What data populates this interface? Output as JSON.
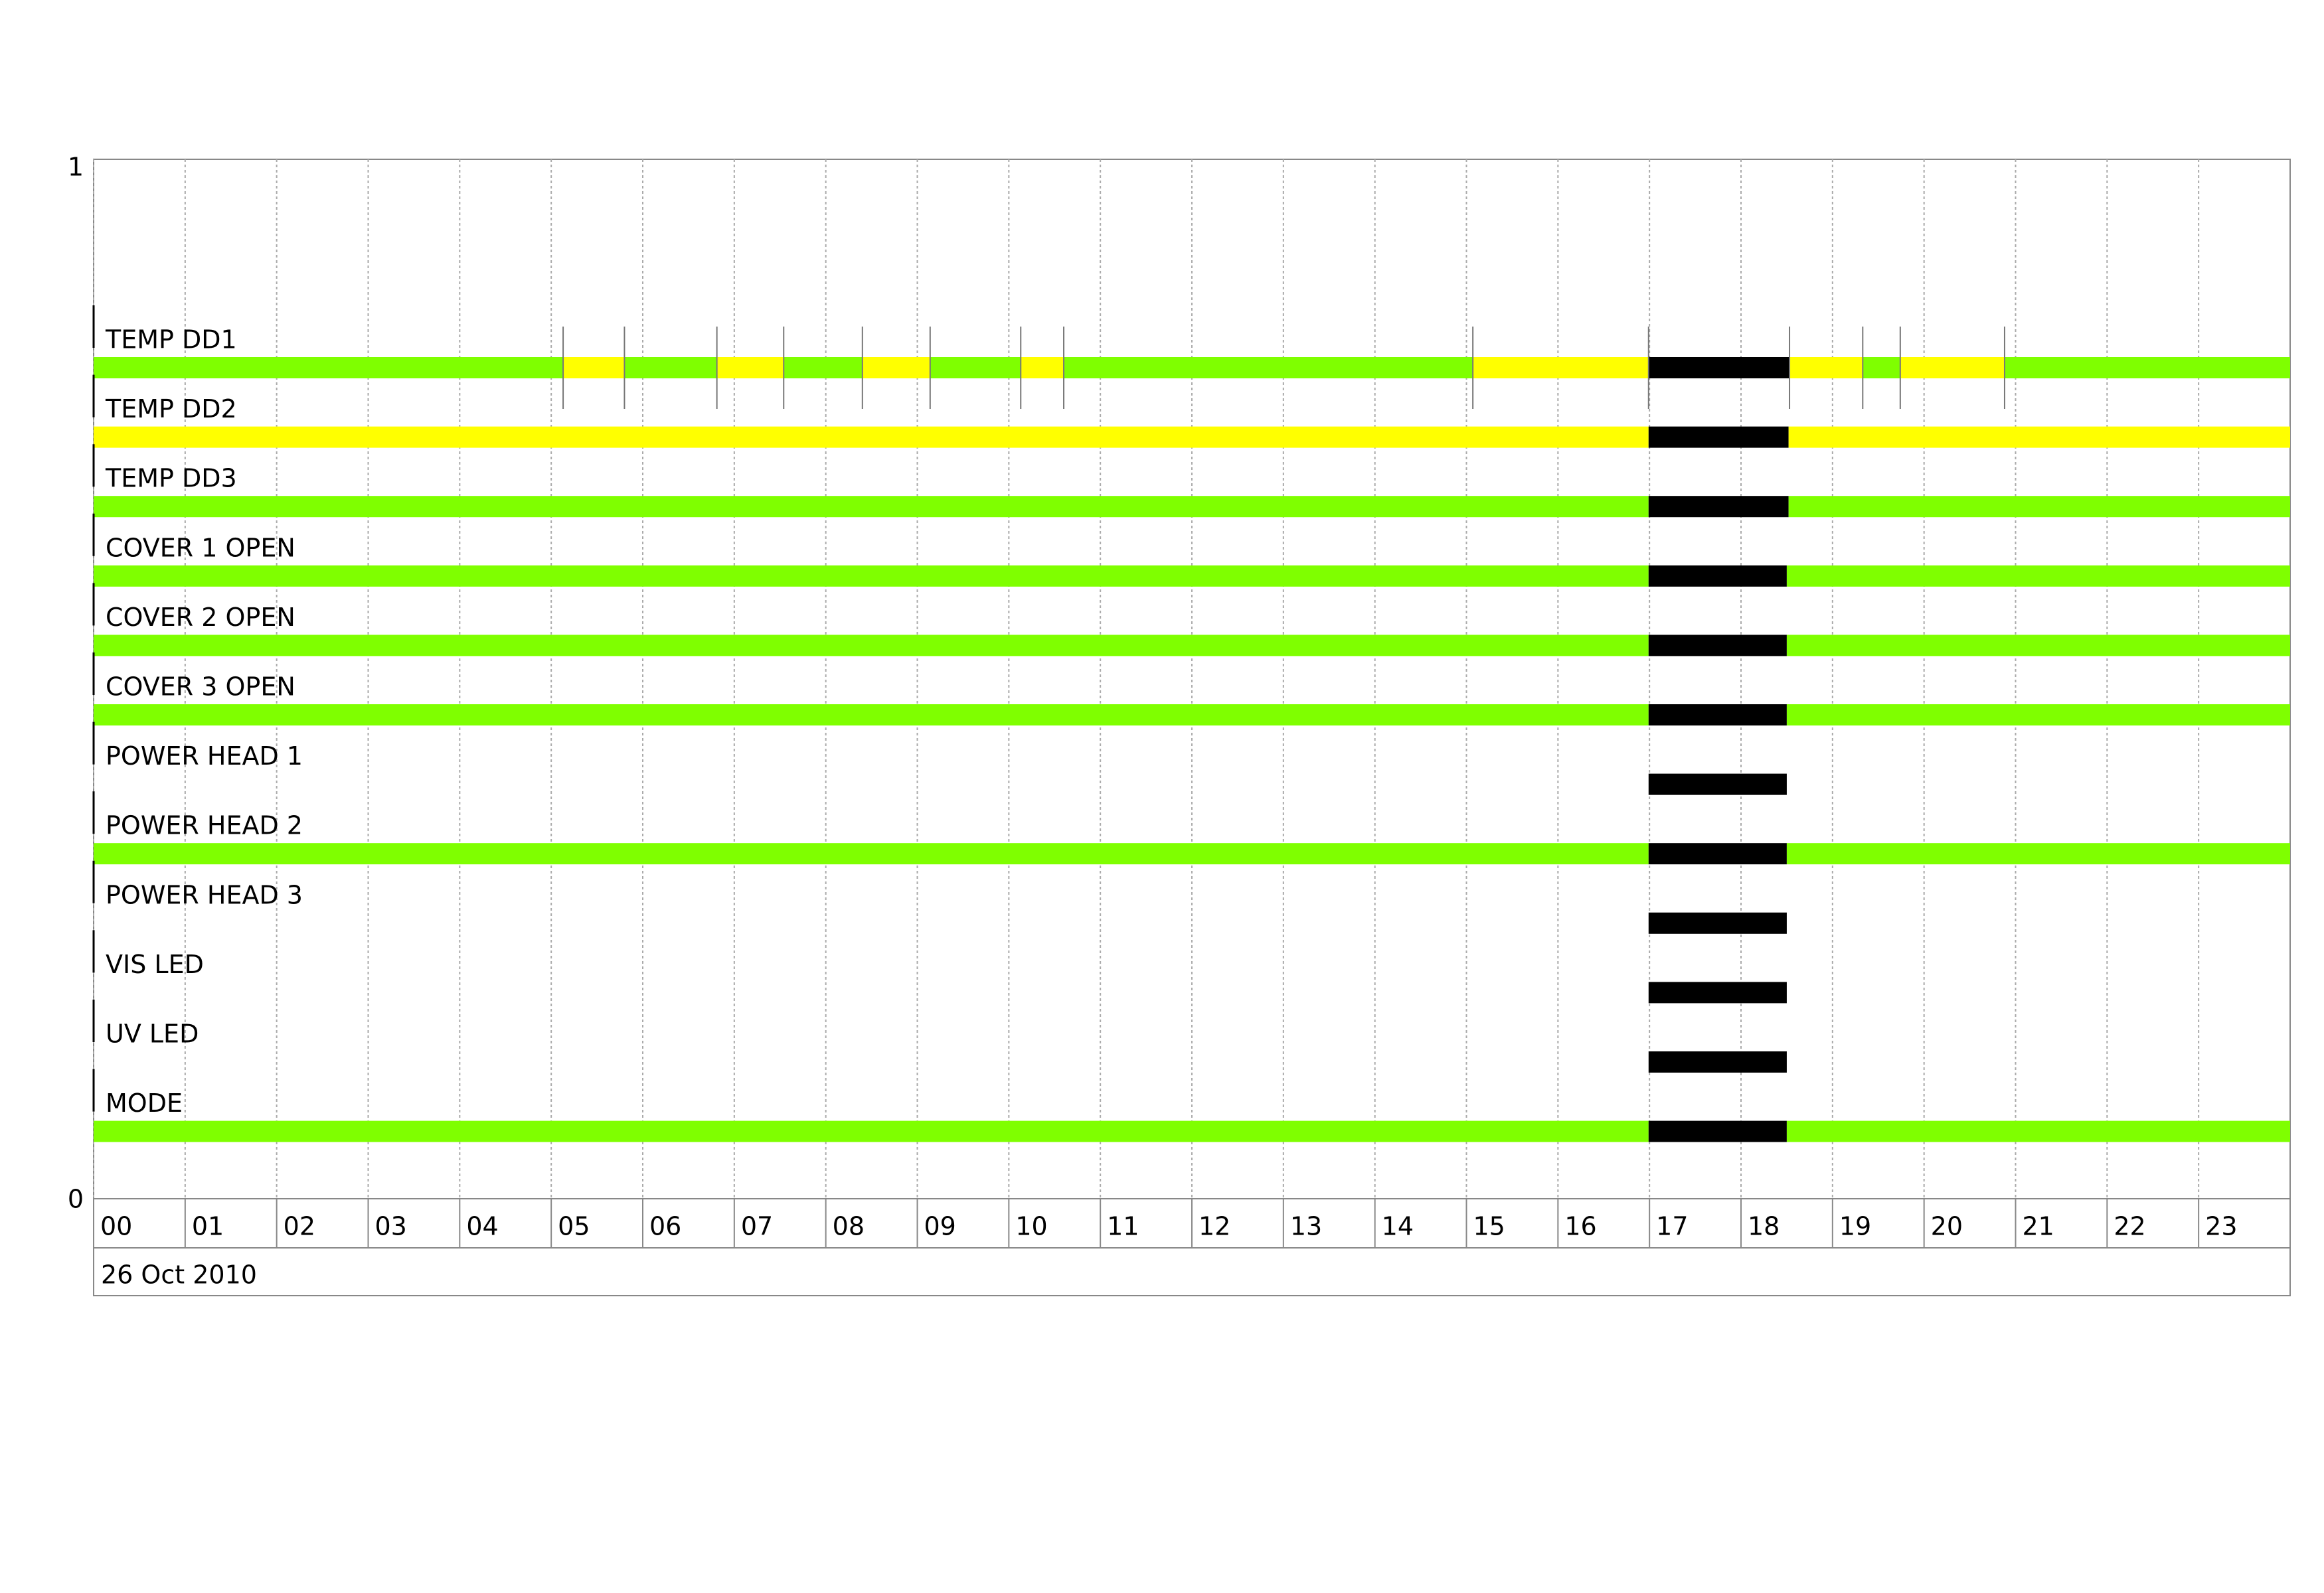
{
  "chart_data": {
    "type": "timeline",
    "xlim": [
      0,
      24
    ],
    "xticks": [
      {
        "value": 0,
        "label": "00"
      },
      {
        "value": 1,
        "label": "01"
      },
      {
        "value": 2,
        "label": "02"
      },
      {
        "value": 3,
        "label": "03"
      },
      {
        "value": 4,
        "label": "04"
      },
      {
        "value": 5,
        "label": "05"
      },
      {
        "value": 6,
        "label": "06"
      },
      {
        "value": 7,
        "label": "07"
      },
      {
        "value": 8,
        "label": "08"
      },
      {
        "value": 9,
        "label": "09"
      },
      10,
      11,
      12,
      13,
      14,
      15,
      16,
      17,
      18,
      19,
      20,
      21,
      22,
      23
    ],
    "ylim": [
      0,
      1
    ],
    "yticks": [
      0,
      1
    ],
    "date_label": "26 Oct 2010",
    "grid": true,
    "rows": [
      {
        "name": "TEMP DD1",
        "segments": [
          {
            "start": 0,
            "end": 5.13,
            "color": "#7fff00"
          },
          {
            "start": 5.13,
            "end": 5.8,
            "color": "#ffff00"
          },
          {
            "start": 5.8,
            "end": 6.81,
            "color": "#7fff00"
          },
          {
            "start": 6.81,
            "end": 7.54,
            "color": "#ffff00"
          },
          {
            "start": 7.54,
            "end": 8.4,
            "color": "#7fff00"
          },
          {
            "start": 8.4,
            "end": 9.14,
            "color": "#ffff00"
          },
          {
            "start": 9.14,
            "end": 10.13,
            "color": "#7fff00"
          },
          {
            "start": 10.13,
            "end": 10.6,
            "color": "#ffff00"
          },
          {
            "start": 10.6,
            "end": 15.07,
            "color": "#7fff00"
          },
          {
            "start": 15.07,
            "end": 16.99,
            "color": "#ffff00"
          },
          {
            "start": 16.99,
            "end": 18.53,
            "color": "#000000"
          },
          {
            "start": 18.53,
            "end": 19.33,
            "color": "#ffff00"
          },
          {
            "start": 19.33,
            "end": 19.74,
            "color": "#7fff00"
          },
          {
            "start": 19.74,
            "end": 20.88,
            "color": "#ffff00"
          },
          {
            "start": 20.88,
            "end": 24,
            "color": "#7fff00"
          }
        ]
      },
      {
        "name": "TEMP DD2",
        "segments": [
          {
            "start": 0,
            "end": 16.99,
            "color": "#ffff00"
          },
          {
            "start": 16.99,
            "end": 18.52,
            "color": "#000000"
          },
          {
            "start": 18.52,
            "end": 24,
            "color": "#ffff00"
          }
        ]
      },
      {
        "name": "TEMP DD3",
        "segments": [
          {
            "start": 0,
            "end": 16.99,
            "color": "#7fff00"
          },
          {
            "start": 16.99,
            "end": 18.52,
            "color": "#000000"
          },
          {
            "start": 18.52,
            "end": 24,
            "color": "#7fff00"
          }
        ]
      },
      {
        "name": "COVER 1 OPEN",
        "segments": [
          {
            "start": 0,
            "end": 16.99,
            "color": "#7fff00"
          },
          {
            "start": 16.99,
            "end": 18.5,
            "color": "#000000"
          },
          {
            "start": 18.5,
            "end": 24,
            "color": "#7fff00"
          }
        ]
      },
      {
        "name": "COVER 2 OPEN",
        "segments": [
          {
            "start": 0,
            "end": 16.99,
            "color": "#7fff00"
          },
          {
            "start": 16.99,
            "end": 18.5,
            "color": "#000000"
          },
          {
            "start": 18.5,
            "end": 24,
            "color": "#7fff00"
          }
        ]
      },
      {
        "name": "COVER 3 OPEN",
        "segments": [
          {
            "start": 0,
            "end": 16.99,
            "color": "#7fff00"
          },
          {
            "start": 16.99,
            "end": 18.5,
            "color": "#000000"
          },
          {
            "start": 18.5,
            "end": 24,
            "color": "#7fff00"
          }
        ]
      },
      {
        "name": "POWER HEAD 1",
        "segments": [
          {
            "start": 16.99,
            "end": 18.5,
            "color": "#000000"
          }
        ]
      },
      {
        "name": "POWER HEAD 2",
        "segments": [
          {
            "start": 0,
            "end": 16.99,
            "color": "#7fff00"
          },
          {
            "start": 16.99,
            "end": 18.5,
            "color": "#000000"
          },
          {
            "start": 18.5,
            "end": 24,
            "color": "#7fff00"
          }
        ]
      },
      {
        "name": "POWER HEAD 3",
        "segments": [
          {
            "start": 16.99,
            "end": 18.5,
            "color": "#000000"
          }
        ]
      },
      {
        "name": "VIS LED",
        "segments": [
          {
            "start": 16.99,
            "end": 18.5,
            "color": "#000000"
          }
        ]
      },
      {
        "name": "UV LED",
        "segments": [
          {
            "start": 16.99,
            "end": 18.5,
            "color": "#000000"
          }
        ]
      },
      {
        "name": "MODE",
        "segments": [
          {
            "start": 0,
            "end": 16.99,
            "color": "#7fff00"
          },
          {
            "start": 16.99,
            "end": 18.5,
            "color": "#000000"
          },
          {
            "start": 18.5,
            "end": 24,
            "color": "#7fff00"
          }
        ]
      }
    ]
  }
}
